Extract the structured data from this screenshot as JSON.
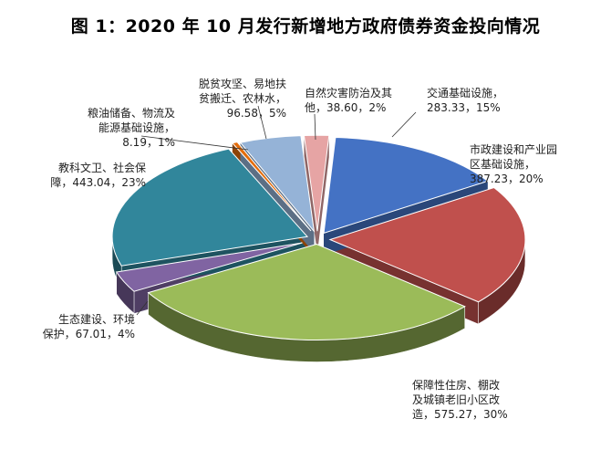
{
  "chart_data": {
    "type": "pie",
    "title": "图 1：2020 年 10 月发行新增地方政府债券资金投向情况",
    "slices": [
      {
        "name": "交通基础设施",
        "value": 283.33,
        "percent": "15%",
        "color": "#4472C4",
        "label_lines": [
          "交通基础设施，",
          "283.33，15%"
        ]
      },
      {
        "name": "市政建设和产业园区基础设施",
        "value": 387.23,
        "percent": "20%",
        "color": "#C0504D",
        "label_lines": [
          "市政建设和产业园",
          "区基础设施，",
          "387.23，20%"
        ]
      },
      {
        "name": "保障性住房、棚改及城镇老旧小区改造",
        "value": 575.27,
        "percent": "30%",
        "color": "#9BBB59",
        "label_lines": [
          "保障性住房、棚改",
          "及城镇老旧小区改",
          "造，575.27，30%"
        ]
      },
      {
        "name": "生态建设、环境保护",
        "value": 67.01,
        "percent": "4%",
        "color": "#8064A2",
        "label_lines": [
          "生态建设、环境",
          "保护，67.01，4%"
        ]
      },
      {
        "name": "教科文卫、社会保障",
        "value": 443.04,
        "percent": "23%",
        "color": "#31869B",
        "label_lines": [
          "教科文卫、社会保",
          "障，443.04，23%"
        ]
      },
      {
        "name": "粮油储备、物流及能源基础设施",
        "value": 8.19,
        "percent": "1%",
        "color": "#E46C0A",
        "label_lines": [
          "粮油储备、物流及",
          "能源基础设施，",
          "8.19，1%"
        ]
      },
      {
        "name": "脱贫攻坚、易地扶贫搬迁、农林水",
        "value": 96.58,
        "percent": "5%",
        "color": "#95B3D7",
        "label_lines": [
          "脱贫攻坚、易地扶",
          "贫搬迁、农林水，",
          "96.58，5%"
        ]
      },
      {
        "name": "自然灾害防治及其他",
        "value": 38.6,
        "percent": "2%",
        "color": "#E6A4A4",
        "label_lines": [
          "自然灾害防治及其",
          "他，38.60，2%"
        ]
      }
    ]
  }
}
